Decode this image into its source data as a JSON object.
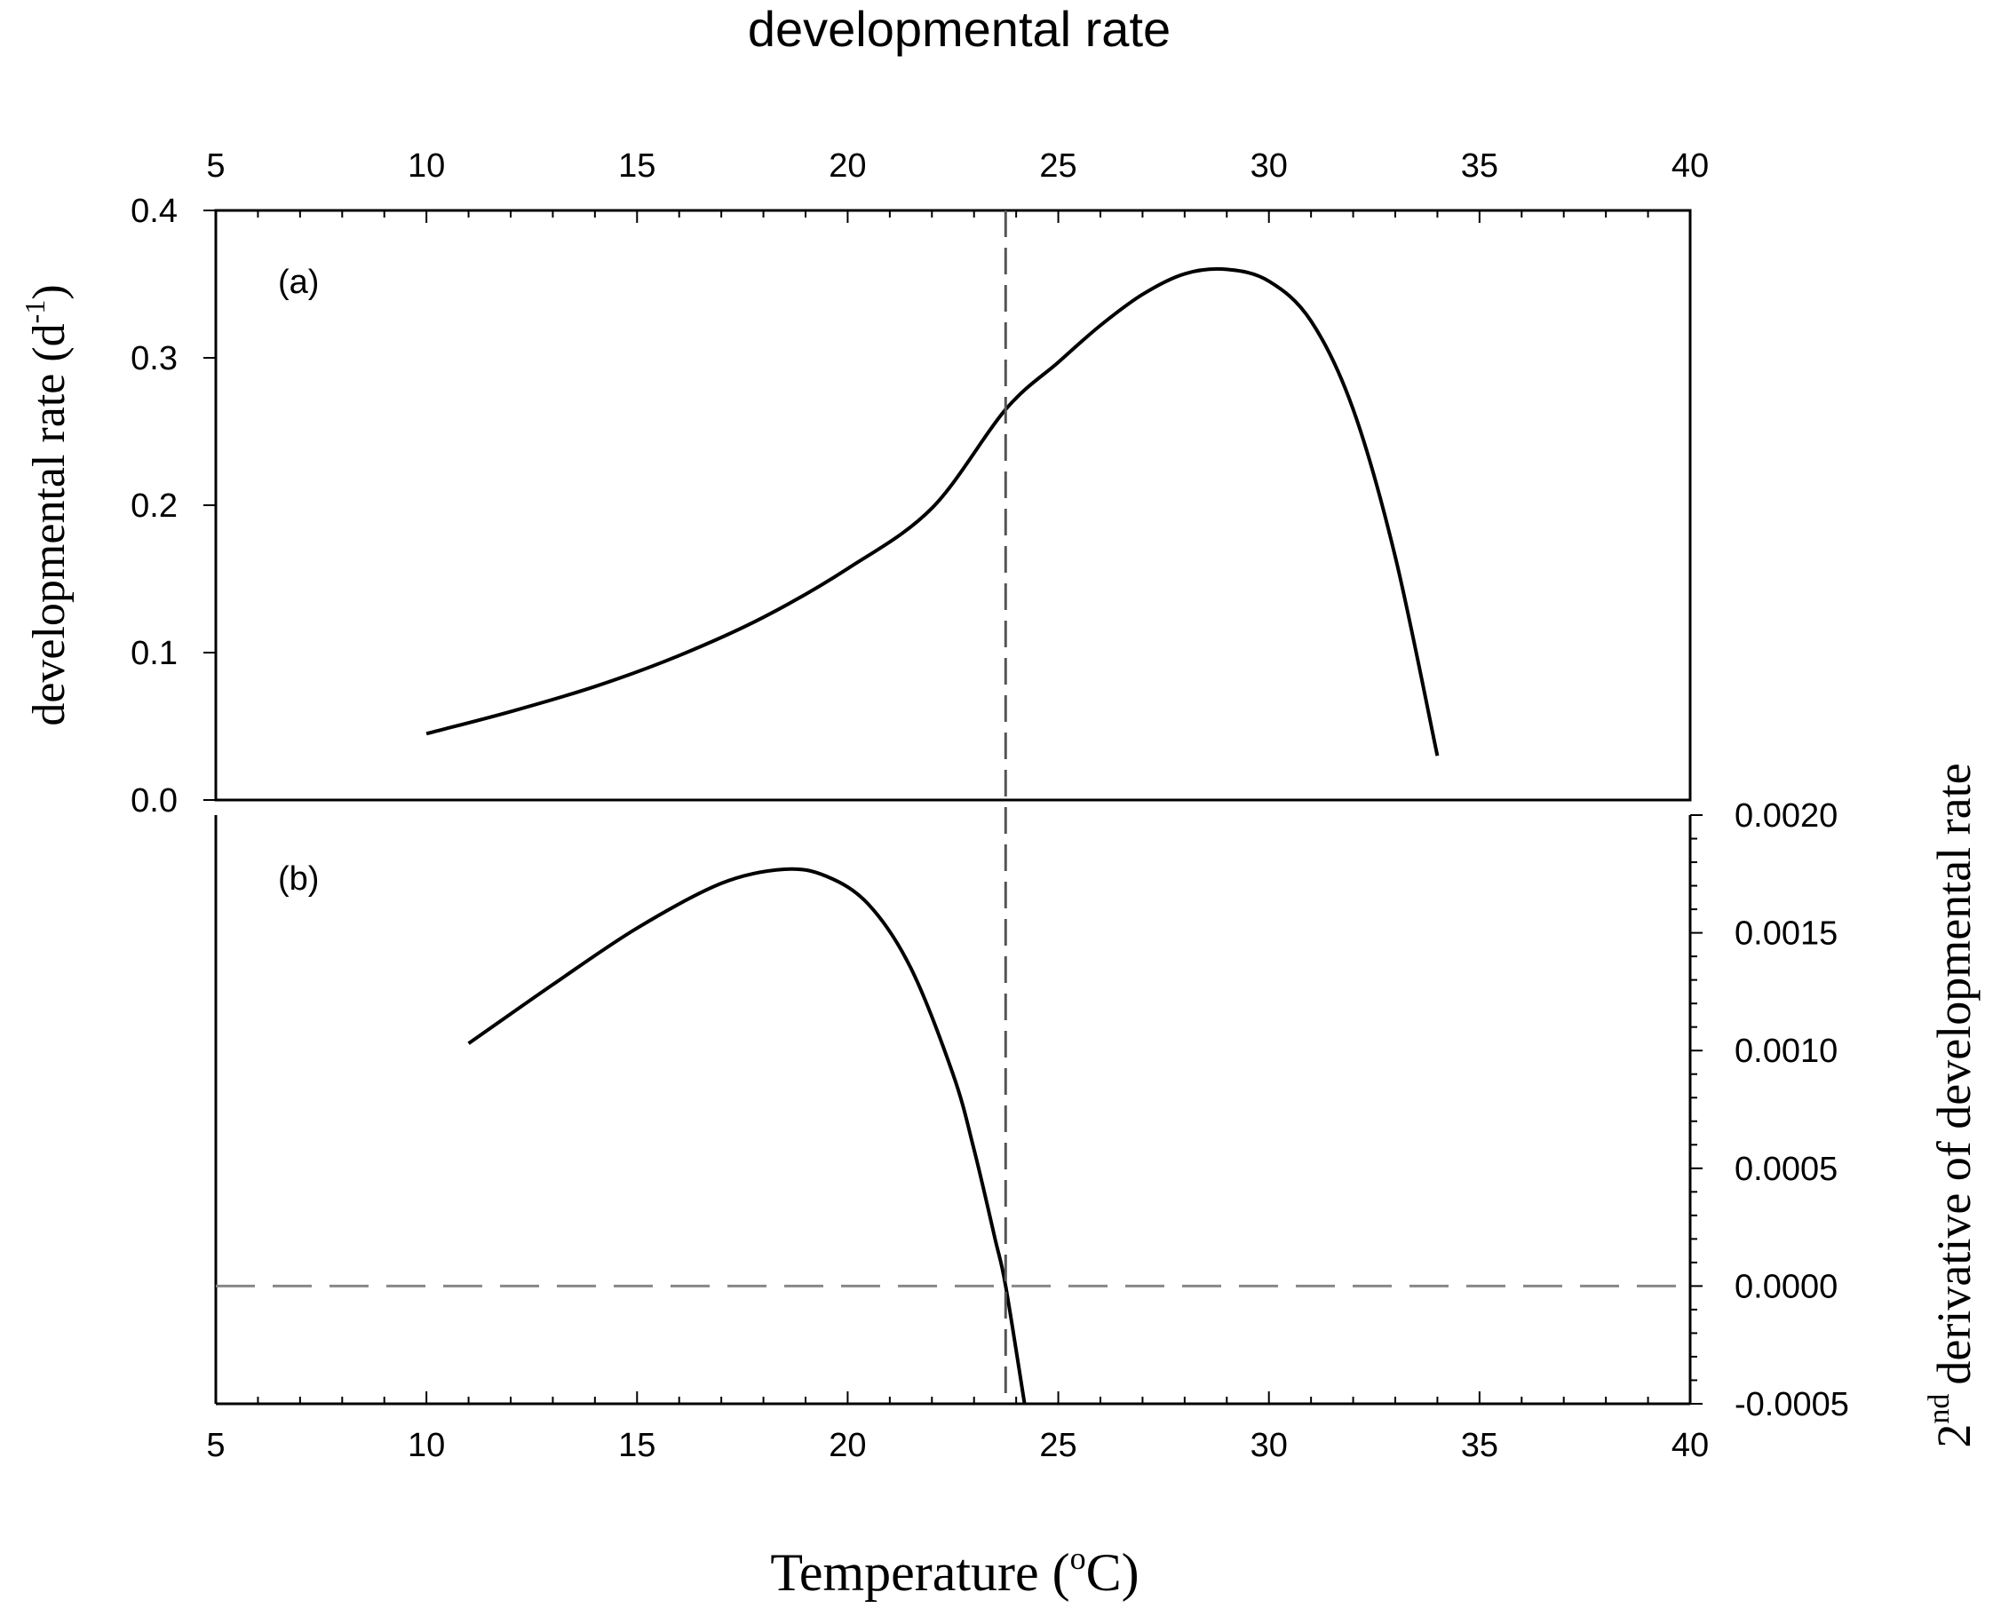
{
  "figure_title": "developmental rate",
  "chart_data": [
    {
      "id": "a",
      "type": "line",
      "panel_label": "(a)",
      "title": "developmental rate",
      "xlabel_prefix": "Temperature (",
      "xlabel_sup": "o",
      "xlabel_suffix": "C)",
      "ylabel_main": "developmental rate (d",
      "ylabel_sup": "-1",
      "ylabel_end": ")",
      "xlim": [
        5,
        40
      ],
      "ylim": [
        0,
        0.4
      ],
      "x_ticks": [
        "5",
        "10",
        "15",
        "20",
        "25",
        "30",
        "35",
        "40"
      ],
      "y_ticks": [
        "0.0",
        "0.1",
        "0.2",
        "0.3",
        "0.4"
      ],
      "series": [
        {
          "name": "developmental rate",
          "x": [
            10,
            12,
            14,
            16,
            18,
            20,
            22,
            23.75,
            25,
            26,
            27,
            28,
            29,
            30,
            31,
            32,
            33,
            34
          ],
          "y": [
            0.045,
            0.06,
            0.077,
            0.098,
            0.124,
            0.157,
            0.198,
            0.265,
            0.297,
            0.322,
            0.343,
            0.357,
            0.36,
            0.352,
            0.325,
            0.265,
            0.165,
            0.03
          ]
        }
      ],
      "reference_vline_x": 23.75
    },
    {
      "id": "b",
      "type": "line",
      "panel_label": "(b)",
      "ylabel_main": "derivative of developmental rate",
      "ylabel_pre": "2",
      "ylabel_pre_sup": "nd",
      "xlim": [
        5,
        40
      ],
      "ylim": [
        -0.0005,
        0.002
      ],
      "x_ticks": [
        "5",
        "10",
        "15",
        "20",
        "25",
        "30",
        "35",
        "40"
      ],
      "y_ticks": [
        "-0.0005",
        "0.0000",
        "0.0005",
        "0.0010",
        "0.0015",
        "0.0020"
      ],
      "series": [
        {
          "name": "2nd derivative",
          "x": [
            11,
            13,
            15,
            17,
            18.5,
            19.5,
            20.5,
            21.5,
            22.5,
            23,
            23.5,
            23.75,
            24.2
          ],
          "y": [
            0.00103,
            0.00128,
            0.00152,
            0.00171,
            0.00177,
            0.00174,
            0.00162,
            0.00135,
            0.0009,
            0.00058,
            0.0002,
            0.0,
            -0.0005
          ]
        }
      ],
      "reference_hline_y": 0.0,
      "reference_vline_x": 23.75
    }
  ]
}
